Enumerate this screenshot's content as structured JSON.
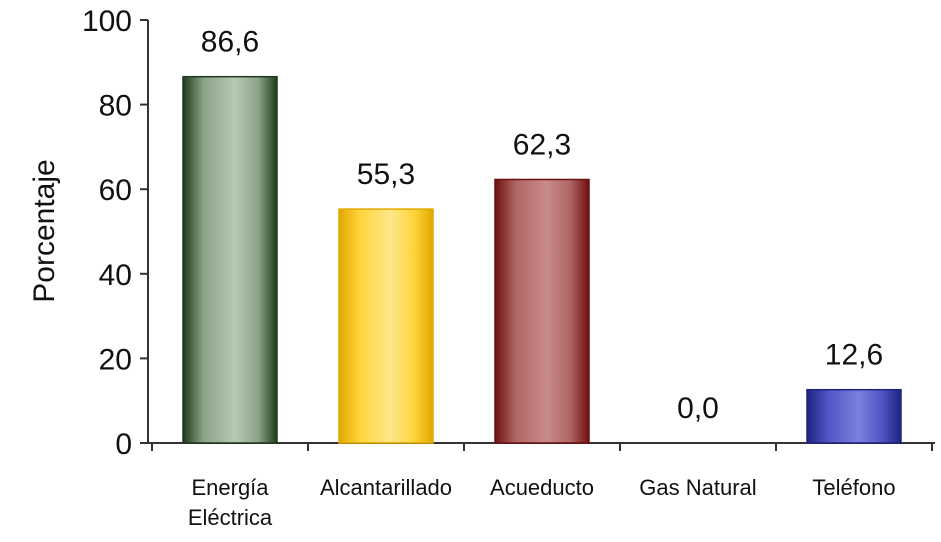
{
  "chart_data": {
    "type": "bar",
    "categories": [
      [
        "Energía",
        "Eléctrica"
      ],
      [
        "Alcantarillado"
      ],
      [
        "Acueducto"
      ],
      [
        "Gas Natural"
      ],
      [
        "Teléfono"
      ]
    ],
    "values": [
      86.6,
      55.3,
      62.3,
      0.0,
      12.6
    ],
    "data_labels": [
      "86,6",
      "55,3",
      "62,3",
      "0,0",
      "12,6"
    ],
    "bar_colors": [
      {
        "dark": "#1f3a1c",
        "mid": "#8aa487",
        "light": "#b7c9b4"
      },
      {
        "dark": "#e0a800",
        "mid": "#ffd43a",
        "light": "#ffe78a"
      },
      {
        "dark": "#6e1010",
        "mid": "#b06565",
        "light": "#c98a8a"
      },
      {
        "dark": "#999999",
        "mid": "#cccccc",
        "light": "#eeeeee"
      },
      {
        "dark": "#1f2380",
        "mid": "#4f55c4",
        "light": "#7a80de"
      }
    ],
    "ylabel": "Porcentaje",
    "xlabel": "",
    "title": "",
    "ylim": [
      0,
      100
    ],
    "yticks": [
      0,
      20,
      40,
      60,
      80,
      100
    ],
    "grid": false,
    "legend": "none"
  }
}
